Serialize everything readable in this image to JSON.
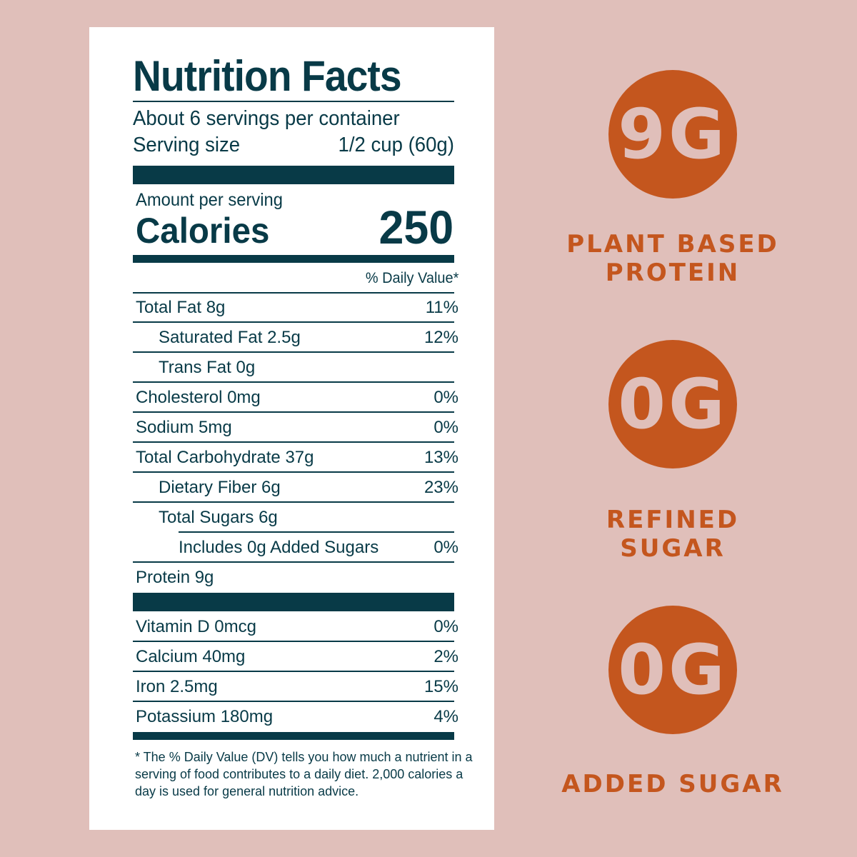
{
  "label": {
    "title": "Nutrition Facts",
    "servings": "About 6 servings per container",
    "serving_size_label": "Serving size",
    "serving_size_value": "1/2 cup (60g)",
    "amount_per_serving": "Amount per serving",
    "calories_label": "Calories",
    "calories_value": "250",
    "dv_header": "% Daily Value*",
    "rows": [
      {
        "name": "Total Fat 8g",
        "dv": "11%"
      },
      {
        "name": "Saturated Fat 2.5g",
        "dv": "12%"
      },
      {
        "name": "Trans Fat 0g",
        "dv": ""
      },
      {
        "name": "Cholesterol 0mg",
        "dv": "0%"
      },
      {
        "name": "Sodium 5mg",
        "dv": "0%"
      },
      {
        "name": "Total Carbohydrate 37g",
        "dv": "13%"
      },
      {
        "name": "Dietary Fiber 6g",
        "dv": "23%"
      },
      {
        "name": "Total Sugars 6g",
        "dv": ""
      },
      {
        "name": "Includes 0g Added Sugars",
        "dv": "0%"
      },
      {
        "name": "Protein 9g",
        "dv": ""
      }
    ],
    "vitamins": [
      {
        "name": "Vitamin D 0mcg",
        "dv": "0%"
      },
      {
        "name": "Calcium 40mg",
        "dv": "2%"
      },
      {
        "name": "Iron 2.5mg",
        "dv": "15%"
      },
      {
        "name": "Potassium 180mg",
        "dv": "4%"
      }
    ],
    "footnote": "* The % Daily Value (DV) tells you how much a nutrient in a serving of food contributes to a daily diet. 2,000 calories a day is used for general nutrition advice."
  },
  "badges": [
    {
      "value": "9G",
      "caption": "PLANT BASED PROTEIN"
    },
    {
      "value": "0G",
      "caption": "REFINED SUGAR"
    },
    {
      "value": "0G",
      "caption": "ADDED SUGAR"
    }
  ],
  "colors": {
    "background": "#e0bfba",
    "accent": "#c4561e",
    "ink": "#083a47"
  }
}
